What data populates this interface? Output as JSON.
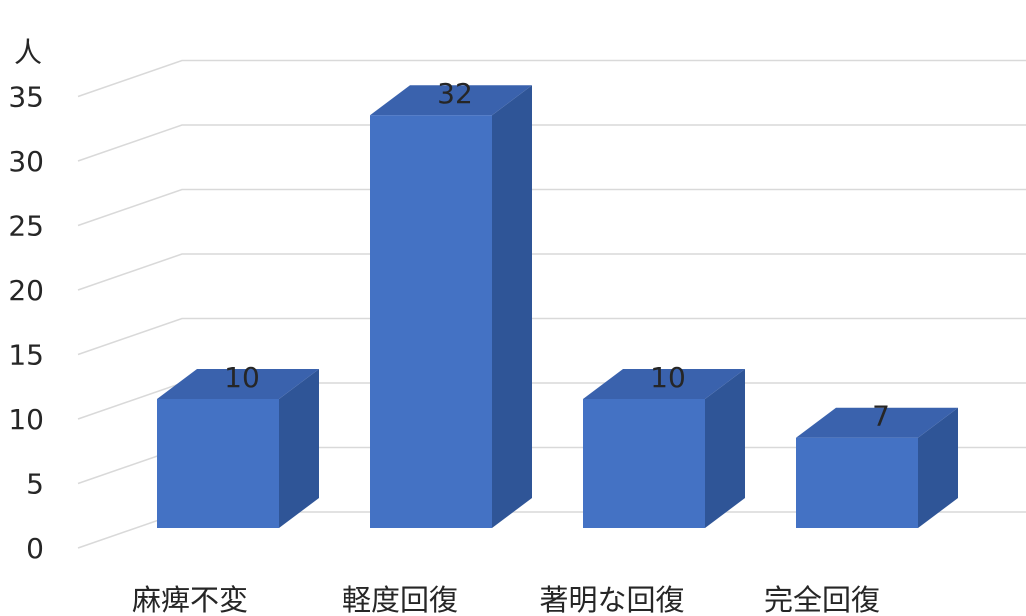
{
  "chart_data": {
    "type": "bar",
    "style": "3d-column",
    "unit_label": "人",
    "categories": [
      "麻痺不変",
      "軽度回復",
      "著明な回復",
      "完全回復"
    ],
    "values": [
      10,
      32,
      10,
      7
    ],
    "yticks": [
      0,
      5,
      10,
      15,
      20,
      25,
      30,
      35
    ],
    "ylim": [
      0,
      35
    ],
    "grid": true,
    "legend": "none",
    "data_labels": true,
    "colors": {
      "bar_front": "#4472c4",
      "bar_side": "#2f5597",
      "bar_top": "#3a62ad",
      "grid": "#d9d9d9",
      "text": "#262626"
    }
  }
}
